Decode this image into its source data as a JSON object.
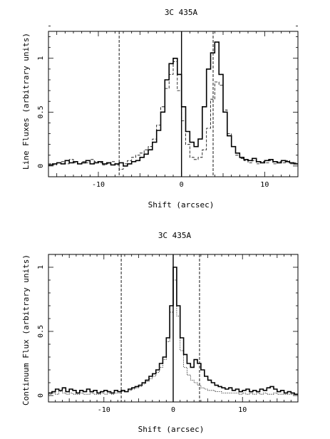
{
  "chart_data": [
    {
      "type": "line",
      "style": "step",
      "title": "3C 435A",
      "xlabel": "Shift (arcsec)",
      "ylabel": "Line Fluxes (arbitrary units)",
      "xlim": [
        -16,
        14
      ],
      "ylim": [
        -0.1,
        1.25
      ],
      "xticks": [
        -10,
        0,
        10
      ],
      "yticks": [
        0,
        0.5,
        1
      ],
      "vlines": [
        {
          "x": -7.5,
          "style": "dashed"
        },
        {
          "x": 0,
          "style": "solid"
        },
        {
          "x": 3.8,
          "style": "dashed"
        }
      ],
      "series": [
        {
          "style": "solid-thick",
          "x": [
            -16,
            -15.5,
            -15,
            -14.5,
            -14,
            -13.5,
            -13,
            -12.5,
            -12,
            -11.5,
            -11,
            -10.5,
            -10,
            -9.5,
            -9,
            -8.5,
            -8,
            -7.5,
            -7,
            -6.5,
            -6,
            -5.5,
            -5,
            -4.5,
            -4,
            -3.5,
            -3,
            -2.5,
            -2,
            -1.5,
            -1,
            -0.5,
            0,
            0.5,
            1,
            1.5,
            2,
            2.5,
            3,
            3.5,
            4,
            4.5,
            5,
            5.5,
            6,
            6.5,
            7,
            7.5,
            8,
            8.5,
            9,
            9.5,
            10,
            10.5,
            11,
            11.5,
            12,
            12.5,
            13,
            13.5
          ],
          "y": [
            0.01,
            0.02,
            0.03,
            0.02,
            0.05,
            0.03,
            0.04,
            0.02,
            0.03,
            0.05,
            0.02,
            0.03,
            0.04,
            0.02,
            0.03,
            0.01,
            0.02,
            0.03,
            0.0,
            0.02,
            0.04,
            0.05,
            0.08,
            0.11,
            0.15,
            0.22,
            0.33,
            0.5,
            0.8,
            0.95,
            1.0,
            0.85,
            0.55,
            0.32,
            0.22,
            0.18,
            0.25,
            0.55,
            0.9,
            1.05,
            1.15,
            0.85,
            0.5,
            0.28,
            0.18,
            0.12,
            0.08,
            0.06,
            0.05,
            0.07,
            0.04,
            0.03,
            0.05,
            0.06,
            0.04,
            0.03,
            0.05,
            0.04,
            0.03,
            0.02
          ]
        },
        {
          "style": "dashed",
          "x": [
            -16,
            -15.5,
            -15,
            -14.5,
            -14,
            -13.5,
            -13,
            -12.5,
            -12,
            -11.5,
            -11,
            -10.5,
            -10,
            -9.5,
            -9,
            -8.5,
            -8,
            -7.5,
            -7,
            -6.5,
            -6,
            -5.5,
            -5,
            -4.5,
            -4,
            -3.5,
            -3,
            -2.5,
            -2,
            -1.5,
            -1,
            -0.5,
            0,
            0.5,
            1,
            1.5,
            2,
            2.5,
            3,
            3.5,
            4,
            4.5,
            5,
            5.5,
            6,
            6.5,
            7,
            7.5,
            8,
            8.5,
            9,
            9.5,
            10,
            10.5,
            11,
            11.5,
            12,
            12.5,
            13,
            13.5
          ],
          "y": [
            0.02,
            0.01,
            0.03,
            0.04,
            0.02,
            0.06,
            0.03,
            0.02,
            0.04,
            0.03,
            0.06,
            0.04,
            0.03,
            0.01,
            0.02,
            0.04,
            0.01,
            -0.03,
            0.02,
            0.05,
            0.08,
            0.1,
            0.12,
            0.15,
            0.18,
            0.25,
            0.38,
            0.55,
            0.72,
            0.85,
            0.97,
            0.7,
            0.42,
            0.2,
            0.08,
            0.06,
            0.08,
            0.15,
            0.35,
            0.62,
            0.78,
            0.75,
            0.52,
            0.3,
            0.18,
            0.1,
            0.07,
            0.05,
            0.03,
            0.05,
            0.02,
            0.04,
            0.03,
            0.05,
            0.02,
            0.04,
            0.03,
            0.05,
            0.02,
            0.03
          ]
        }
      ]
    },
    {
      "type": "line",
      "style": "step",
      "title": "3C 435A",
      "xlabel": "Shift (arcsec)",
      "ylabel": "Continuum Flux (arbitrary units)",
      "xlim": [
        -18,
        18
      ],
      "ylim": [
        -0.05,
        1.1
      ],
      "xticks": [
        -10,
        0,
        10
      ],
      "yticks": [
        0,
        0.5,
        1
      ],
      "vlines": [
        {
          "x": -7.5,
          "style": "dashed"
        },
        {
          "x": 0,
          "style": "solid"
        },
        {
          "x": 3.8,
          "style": "dashed"
        }
      ],
      "series": [
        {
          "style": "solid-thick",
          "x": [
            -18,
            -17.5,
            -17,
            -16.5,
            -16,
            -15.5,
            -15,
            -14.5,
            -14,
            -13.5,
            -13,
            -12.5,
            -12,
            -11.5,
            -11,
            -10.5,
            -10,
            -9.5,
            -9,
            -8.5,
            -8,
            -7.5,
            -7,
            -6.5,
            -6,
            -5.5,
            -5,
            -4.5,
            -4,
            -3.5,
            -3,
            -2.5,
            -2,
            -1.5,
            -1,
            -0.5,
            0,
            0.5,
            1,
            1.5,
            2,
            2.5,
            3,
            3.5,
            4,
            4.5,
            5,
            5.5,
            6,
            6.5,
            7,
            7.5,
            8,
            8.5,
            9,
            9.5,
            10,
            10.5,
            11,
            11.5,
            12,
            12.5,
            13,
            13.5,
            14,
            14.5,
            15,
            15.5,
            16,
            16.5,
            17,
            17.5
          ],
          "y": [
            0.02,
            0.03,
            0.05,
            0.04,
            0.06,
            0.03,
            0.05,
            0.04,
            0.02,
            0.04,
            0.03,
            0.05,
            0.03,
            0.04,
            0.02,
            0.03,
            0.04,
            0.03,
            0.02,
            0.04,
            0.03,
            0.04,
            0.03,
            0.05,
            0.06,
            0.07,
            0.08,
            0.1,
            0.12,
            0.15,
            0.17,
            0.2,
            0.25,
            0.3,
            0.45,
            0.7,
            1.0,
            0.7,
            0.45,
            0.32,
            0.25,
            0.22,
            0.28,
            0.25,
            0.2,
            0.15,
            0.12,
            0.1,
            0.08,
            0.07,
            0.06,
            0.05,
            0.06,
            0.04,
            0.05,
            0.03,
            0.04,
            0.05,
            0.03,
            0.04,
            0.03,
            0.05,
            0.04,
            0.06,
            0.07,
            0.05,
            0.03,
            0.04,
            0.02,
            0.03,
            0.02,
            0.01
          ]
        },
        {
          "style": "dotted",
          "x": [
            -18,
            -17.5,
            -17,
            -16.5,
            -16,
            -15.5,
            -15,
            -14.5,
            -14,
            -13.5,
            -13,
            -12.5,
            -12,
            -11.5,
            -11,
            -10.5,
            -10,
            -9.5,
            -9,
            -8.5,
            -8,
            -7.5,
            -7,
            -6.5,
            -6,
            -5.5,
            -5,
            -4.5,
            -4,
            -3.5,
            -3,
            -2.5,
            -2,
            -1.5,
            -1,
            -0.5,
            0,
            0.5,
            1,
            1.5,
            2,
            2.5,
            3,
            3.5,
            4,
            4.5,
            5,
            5.5,
            6,
            6.5,
            7,
            7.5,
            8,
            8.5,
            9,
            9.5,
            10,
            10.5,
            11,
            11.5,
            12,
            12.5,
            13,
            13.5,
            14,
            14.5,
            15,
            15.5,
            16,
            16.5,
            17,
            17.5
          ],
          "y": [
            0.01,
            0.02,
            0.01,
            0.03,
            0.02,
            0.01,
            0.02,
            0.01,
            0.01,
            0.02,
            0.01,
            0.01,
            0.02,
            0.01,
            0.01,
            0.02,
            0.01,
            0.02,
            0.01,
            0.02,
            0.02,
            0.03,
            0.03,
            0.04,
            0.05,
            0.06,
            0.07,
            0.09,
            0.11,
            0.13,
            0.15,
            0.18,
            0.22,
            0.28,
            0.42,
            0.65,
            0.9,
            0.62,
            0.35,
            0.22,
            0.16,
            0.12,
            0.1,
            0.08,
            0.06,
            0.05,
            0.04,
            0.04,
            0.03,
            0.03,
            0.02,
            0.02,
            0.02,
            0.02,
            0.02,
            0.01,
            0.02,
            0.01,
            0.02,
            0.01,
            0.02,
            0.01,
            0.02,
            0.01,
            0.01,
            0.02,
            0.01,
            0.01,
            0.01,
            0.01,
            0.01,
            0.01
          ]
        }
      ]
    }
  ]
}
